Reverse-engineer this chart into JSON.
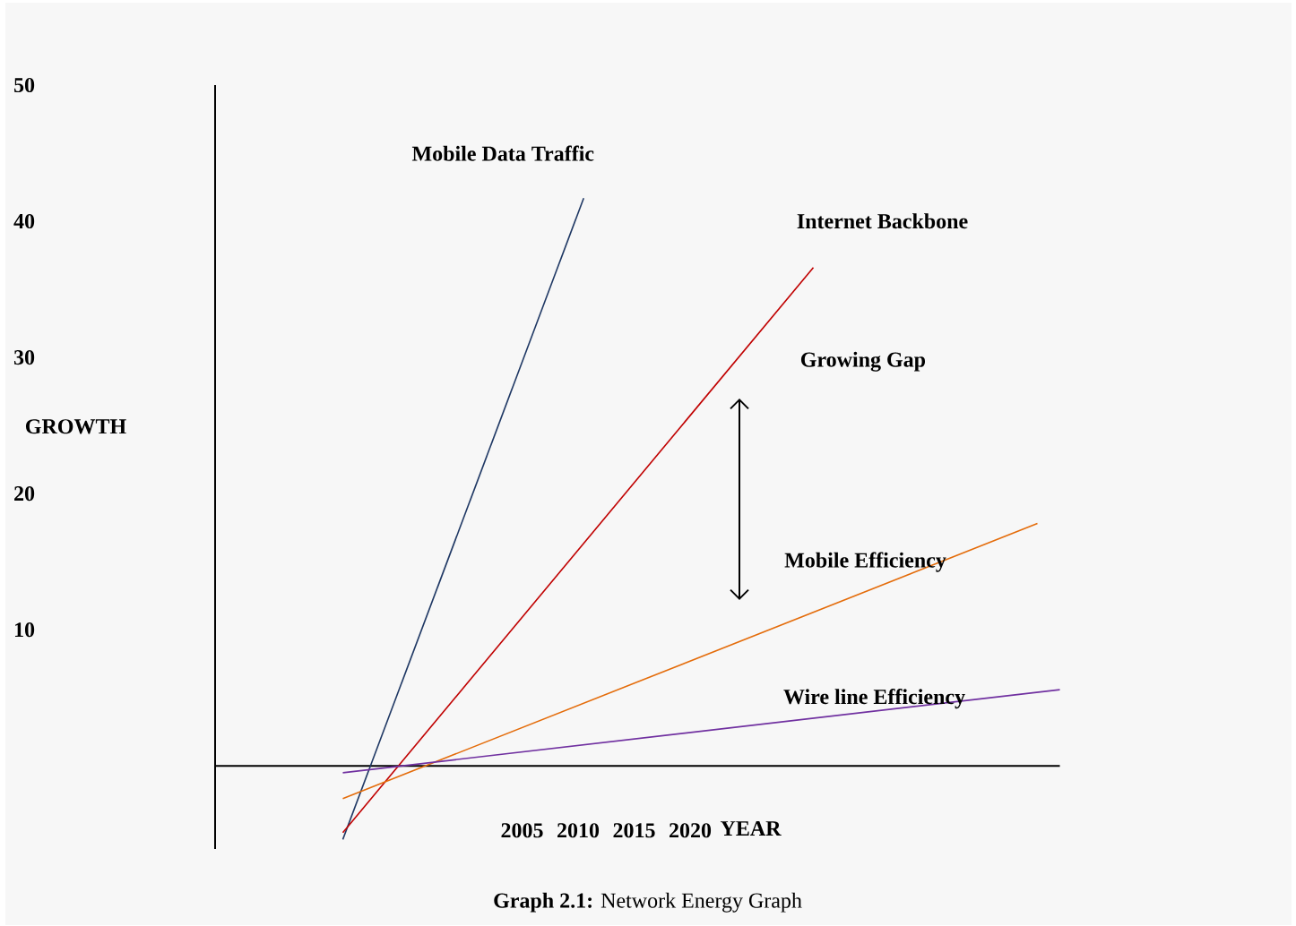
{
  "chart_data": {
    "type": "line",
    "xlabel": "YEAR",
    "ylabel": "GROWTH",
    "annotations": [
      "Growing Gap",
      "**Graph 2.1:** Network Energy Graph"
    ],
    "xlim": [
      1977.6,
      2053
    ],
    "xticks": [
      2005,
      2010,
      2015,
      2020
    ],
    "ylim": [
      -6.1,
      50
    ],
    "yticks": [
      10,
      20,
      30,
      40,
      50
    ],
    "series": [
      {
        "name": "Mobile Data Traffic",
        "color": "#1f3864",
        "x": [
          1989,
          2010.5
        ],
        "values": [
          -5.4,
          41.7
        ]
      },
      {
        "name": "Internet Backbone",
        "color": "#c00000",
        "x": [
          1989,
          2031
        ],
        "values": [
          -4.9,
          36.6
        ]
      },
      {
        "name": "Mobile Efficiency",
        "color": "#e46c0a",
        "x": [
          1989,
          2051
        ],
        "values": [
          -2.4,
          17.8
        ]
      },
      {
        "name": "Wire line Efficiency",
        "color": "#7030a0",
        "x": [
          1989,
          2053
        ],
        "values": [
          -0.5,
          5.6
        ]
      }
    ]
  }
}
